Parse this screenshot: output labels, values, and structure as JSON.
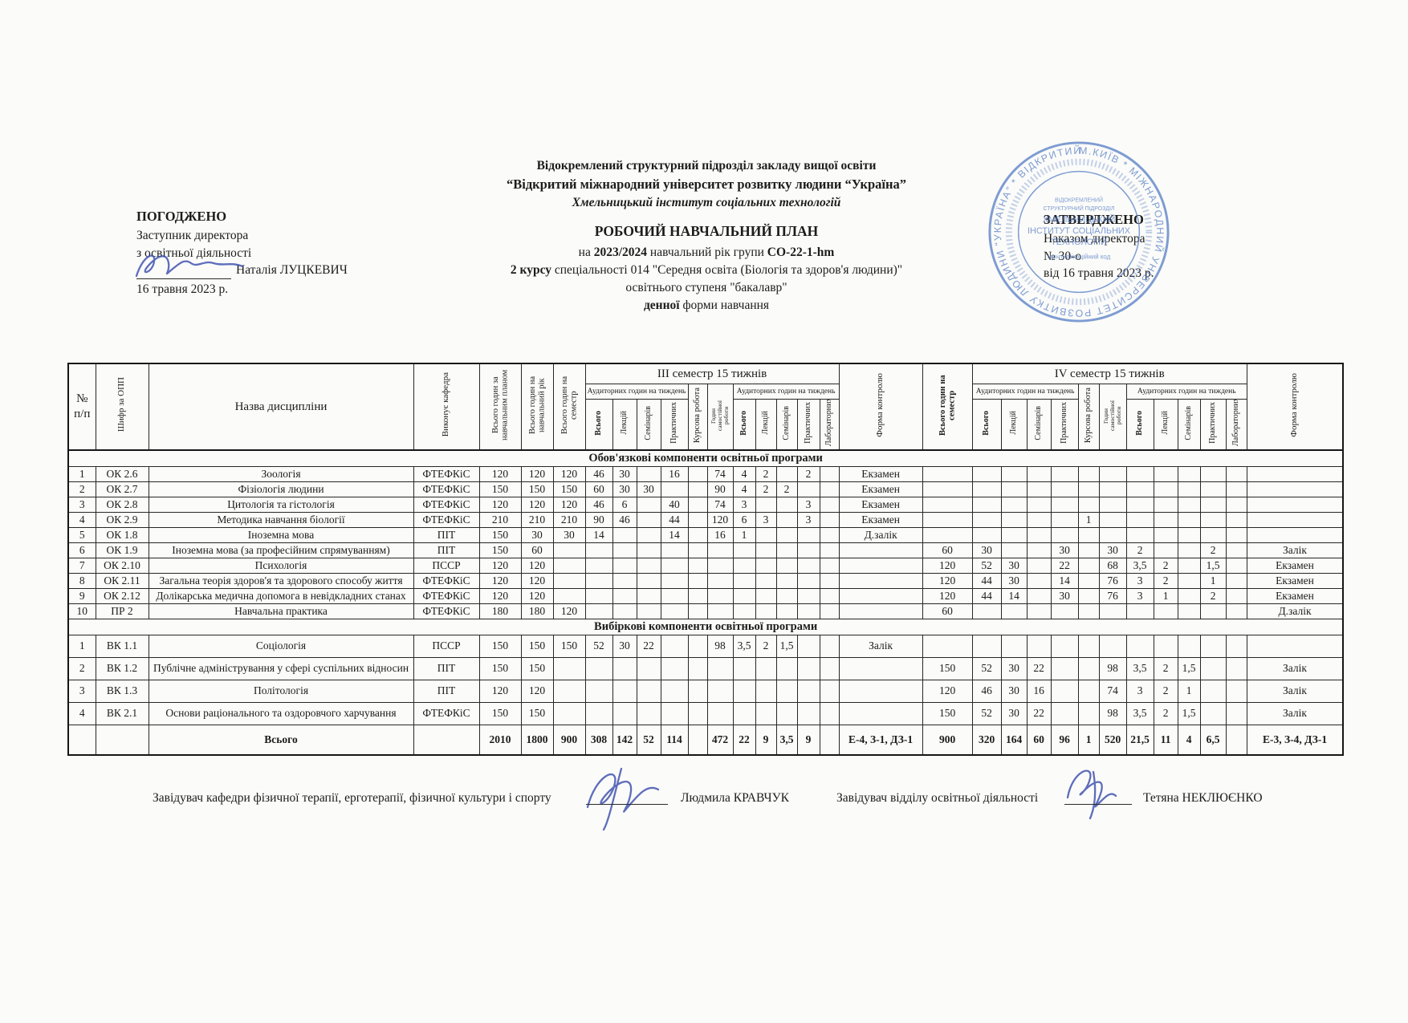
{
  "page": {
    "org": {
      "line1": "Відокремлений структурний підрозділ закладу вищої освіти",
      "line2": "“Відкритий міжнародний університет розвитку людини “Україна”",
      "line3": "Хмельницький інститут соціальних технологій"
    },
    "doc": {
      "title": "РОБОЧИЙ НАВЧАЛЬНИЙ ПЛАН",
      "l1_pre": "на ",
      "l1_year": "2023/2024",
      "l1_mid": " навчальний рік групи ",
      "l1_group": "СО-22-1-hm",
      "l2_bold": "2 курсу",
      "l2_rest": " спеціальності 014 \"Середня освіта (Біологія та здоров'я людини)\"",
      "l3": "освітнього ступеня \"бакалавр\"",
      "l4_bold": "денної",
      "l4_rest": " форми навчання"
    },
    "approve_left": {
      "title": "ПОГОДЖЕНО",
      "line1": "Заступник директора",
      "line2": "з освітньої діяльності",
      "name": "Наталія ЛУЦКЕВИЧ",
      "date": "16 травня 2023 р."
    },
    "approve_right": {
      "title": "ЗАТВЕРДЖЕНО",
      "line1": "Наказом директора",
      "line2": "№ 30-о",
      "line3": "від 16 травня 2023 р."
    },
    "stamp": {
      "color": "#5b82c8",
      "outer_text": "М.КИЇВ * МІЖНАРОДНИЙ УНІВЕРСИТЕТ РОЗВИТКУ ЛЮДИНИ “УКРАЇНА” * ВІДКРИТИЙ *",
      "inner_lines": [
        "ВІДОКРЕМЛЕНИЙ",
        "СТРУКТУРНИЙ ПІДРОЗДІЛ",
        "ХМЕЛЬНИЦЬКИЙ",
        "ІНСТИТУТ СОЦІАЛЬНИХ",
        "ТЕХНОЛОГІЙ",
        "Ідентифікаційний код"
      ]
    },
    "footer": {
      "left_label": "Завідувач кафедри фізичної терапії, ерготерапії, фізичної культури і спорту",
      "left_name": "Людмила КРАВЧУК",
      "right_label": "Завідувач відділу освітньої діяльності",
      "right_name": "Тетяна НЕКЛЮЄНКО"
    }
  },
  "table": {
    "head": {
      "num_top": "№",
      "num_bottom": "п/п",
      "code": "Шифр за ОПП",
      "name": "Назва дисципліни",
      "dept": "Виконує кафедра",
      "total_plan": "Всього годин за навчальним планом",
      "total_year": "Всього годин на навчальний рік",
      "total_sem": "Всього годин на семестр",
      "sem3_title": "III семестр 15 тижнів",
      "sem4_title": "IV семестр 15 тижнів",
      "aud_week": "Аудиторних годин на тиждень",
      "kursova": "Курсова робота",
      "samost": "Годин самостійної роботи",
      "wk": [
        "Всього",
        "Лекцій",
        "Семінарів",
        "Практичних",
        "Лабораторних"
      ],
      "forma": "Форма контролю"
    },
    "sections": [
      {
        "title": "Обов'язкові компоненти освітньої програми",
        "rows": [
          [
            "1",
            "ОК 2.6",
            "Зоологія",
            "ФТЕФКіС",
            "120",
            "120",
            "120",
            "46",
            "30",
            "",
            "16",
            "",
            "74",
            "4",
            "2",
            "",
            "2",
            "",
            "Екзамен",
            "",
            "",
            "",
            "",
            "",
            "",
            "",
            "",
            "",
            "",
            "",
            "",
            ""
          ],
          [
            "2",
            "ОК 2.7",
            "Фізіологія людини",
            "ФТЕФКіС",
            "150",
            "150",
            "150",
            "60",
            "30",
            "30",
            "",
            "",
            "90",
            "4",
            "2",
            "2",
            "",
            "",
            "Екзамен",
            "",
            "",
            "",
            "",
            "",
            "",
            "",
            "",
            "",
            "",
            "",
            "",
            ""
          ],
          [
            "3",
            "ОК 2.8",
            "Цитологія та гістологія",
            "ФТЕФКіС",
            "120",
            "120",
            "120",
            "46",
            "6",
            "",
            "40",
            "",
            "74",
            "3",
            "",
            "",
            "3",
            "",
            "Екзамен",
            "",
            "",
            "",
            "",
            "",
            "",
            "",
            "",
            "",
            "",
            "",
            "",
            ""
          ],
          [
            "4",
            "ОК 2.9",
            "Методика навчання біології",
            "ФТЕФКіС",
            "210",
            "210",
            "210",
            "90",
            "46",
            "",
            "44",
            "",
            "120",
            "6",
            "3",
            "",
            "3",
            "",
            "Екзамен",
            "",
            "",
            "",
            "",
            "",
            "1",
            "",
            "",
            "",
            "",
            "",
            "",
            ""
          ],
          [
            "5",
            "ОК 1.8",
            "Іноземна мова",
            "ПІТ",
            "150",
            "30",
            "30",
            "14",
            "",
            "",
            "14",
            "",
            "16",
            "1",
            "",
            "",
            "",
            "",
            "Д.залік",
            "",
            "",
            "",
            "",
            "",
            "",
            "",
            "",
            "",
            "",
            "",
            "",
            ""
          ],
          [
            "6",
            "ОК 1.9",
            "Іноземна мова (за професійним спрямуванням)",
            "ПІТ",
            "150",
            "60",
            "",
            "",
            "",
            "",
            "",
            "",
            "",
            "",
            "",
            "",
            "",
            "",
            "",
            "60",
            "30",
            "",
            "",
            "30",
            "",
            "30",
            "2",
            "",
            "",
            "2",
            "",
            "Залік"
          ],
          [
            "7",
            "ОК 2.10",
            "Психологія",
            "ПССР",
            "120",
            "120",
            "",
            "",
            "",
            "",
            "",
            "",
            "",
            "",
            "",
            "",
            "",
            "",
            "",
            "120",
            "52",
            "30",
            "",
            "22",
            "",
            "68",
            "3,5",
            "2",
            "",
            "1,5",
            "",
            "Екзамен"
          ],
          [
            "8",
            "ОК 2.11",
            "Загальна теорія здоров'я та здорового способу життя",
            "ФТЕФКіС",
            "120",
            "120",
            "",
            "",
            "",
            "",
            "",
            "",
            "",
            "",
            "",
            "",
            "",
            "",
            "",
            "120",
            "44",
            "30",
            "",
            "14",
            "",
            "76",
            "3",
            "2",
            "",
            "1",
            "",
            "Екзамен"
          ],
          [
            "9",
            "ОК 2.12",
            "Долікарська медична допомога в невідкладних станах",
            "ФТЕФКіС",
            "120",
            "120",
            "",
            "",
            "",
            "",
            "",
            "",
            "",
            "",
            "",
            "",
            "",
            "",
            "",
            "120",
            "44",
            "14",
            "",
            "30",
            "",
            "76",
            "3",
            "1",
            "",
            "2",
            "",
            "Екзамен"
          ],
          [
            "10",
            "ПР 2",
            "Навчальна практика",
            "ФТЕФКіС",
            "180",
            "180",
            "120",
            "",
            "",
            "",
            "",
            "",
            "",
            "",
            "",
            "",
            "",
            "",
            "",
            "60",
            "",
            "",
            "",
            "",
            "",
            "",
            "",
            "",
            "",
            "",
            "",
            "Д.залік"
          ]
        ]
      },
      {
        "title": "Вибіркові компоненти освітньої програми",
        "rows": [
          [
            "1",
            "ВК 1.1",
            "Соціологія",
            "ПССР",
            "150",
            "150",
            "150",
            "52",
            "30",
            "22",
            "",
            "",
            "98",
            "3,5",
            "2",
            "1,5",
            "",
            "",
            "Залік",
            "",
            "",
            "",
            "",
            "",
            "",
            "",
            "",
            "",
            "",
            "",
            "",
            ""
          ],
          [
            "2",
            "ВК 1.2",
            "Публічне адміністрування у сфері суспільних відносин",
            "ПІТ",
            "150",
            "150",
            "",
            "",
            "",
            "",
            "",
            "",
            "",
            "",
            "",
            "",
            "",
            "",
            "",
            "150",
            "52",
            "30",
            "22",
            "",
            "",
            "98",
            "3,5",
            "2",
            "1,5",
            "",
            "",
            "Залік"
          ],
          [
            "3",
            "ВК 1.3",
            "Політологія",
            "ПІТ",
            "120",
            "120",
            "",
            "",
            "",
            "",
            "",
            "",
            "",
            "",
            "",
            "",
            "",
            "",
            "",
            "120",
            "46",
            "30",
            "16",
            "",
            "",
            "74",
            "3",
            "2",
            "1",
            "",
            "",
            "Залік"
          ],
          [
            "4",
            "ВК 2.1",
            "Основи раціонального та оздоровчого харчування",
            "ФТЕФКіС",
            "150",
            "150",
            "",
            "",
            "",
            "",
            "",
            "",
            "",
            "",
            "",
            "",
            "",
            "",
            "",
            "150",
            "52",
            "30",
            "22",
            "",
            "",
            "98",
            "3,5",
            "2",
            "1,5",
            "",
            "",
            "Залік"
          ]
        ]
      }
    ],
    "total_row": [
      "",
      "",
      "Всього",
      "",
      "2010",
      "1800",
      "900",
      "308",
      "142",
      "52",
      "114",
      "",
      "472",
      "22",
      "9",
      "3,5",
      "9",
      "",
      "Е-4, З-1, ДЗ-1",
      "900",
      "320",
      "164",
      "60",
      "96",
      "1",
      "520",
      "21,5",
      "11",
      "4",
      "6,5",
      "",
      "Е-3, З-4, ДЗ-1"
    ]
  }
}
